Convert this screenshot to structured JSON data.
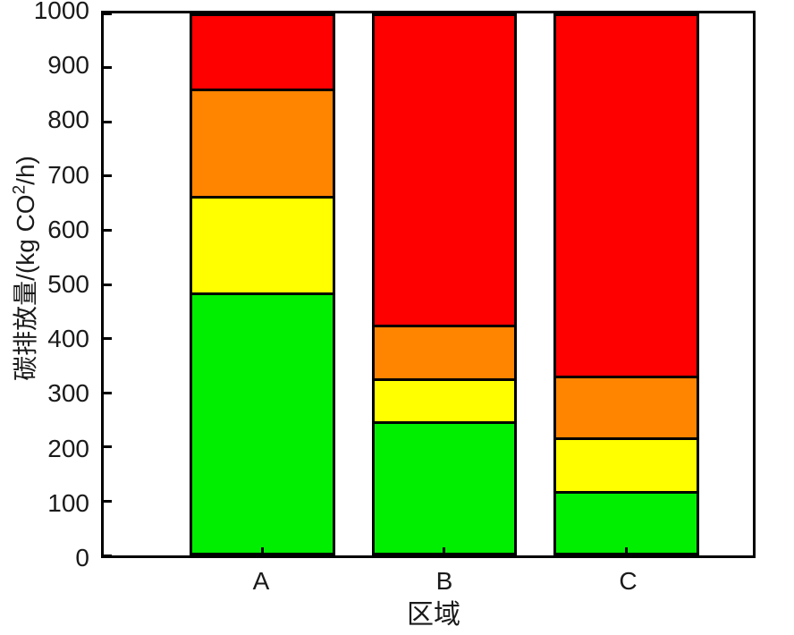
{
  "chart_data": {
    "type": "bar",
    "stacked": true,
    "categories": [
      "A",
      "B",
      "C"
    ],
    "series": [
      {
        "name": "green-segment",
        "color": "#00EE00",
        "values": [
          480,
          240,
          110
        ]
      },
      {
        "name": "yellow-segment",
        "color": "#FFFF00",
        "values": [
          180,
          80,
          100
        ]
      },
      {
        "name": "orange-segment",
        "color": "#FF8400",
        "values": [
          200,
          100,
          115
        ]
      },
      {
        "name": "red-segment",
        "color": "#FF0000",
        "values": [
          140,
          580,
          675
        ]
      }
    ],
    "title": "",
    "xlabel": "区域",
    "ylabel": "碳排放量/(kg CO²/h)",
    "ylabel_parts": {
      "prefix": "碳排放量/(kg CO",
      "sup": "2",
      "suffix": "/h)"
    },
    "ylim": [
      0,
      1000
    ],
    "yticks": [
      0,
      100,
      200,
      300,
      400,
      500,
      600,
      700,
      800,
      900,
      1000
    ],
    "grid": false,
    "legend": "none",
    "frame_color": "#000000",
    "tick_label_color": "#1a1a1a"
  }
}
